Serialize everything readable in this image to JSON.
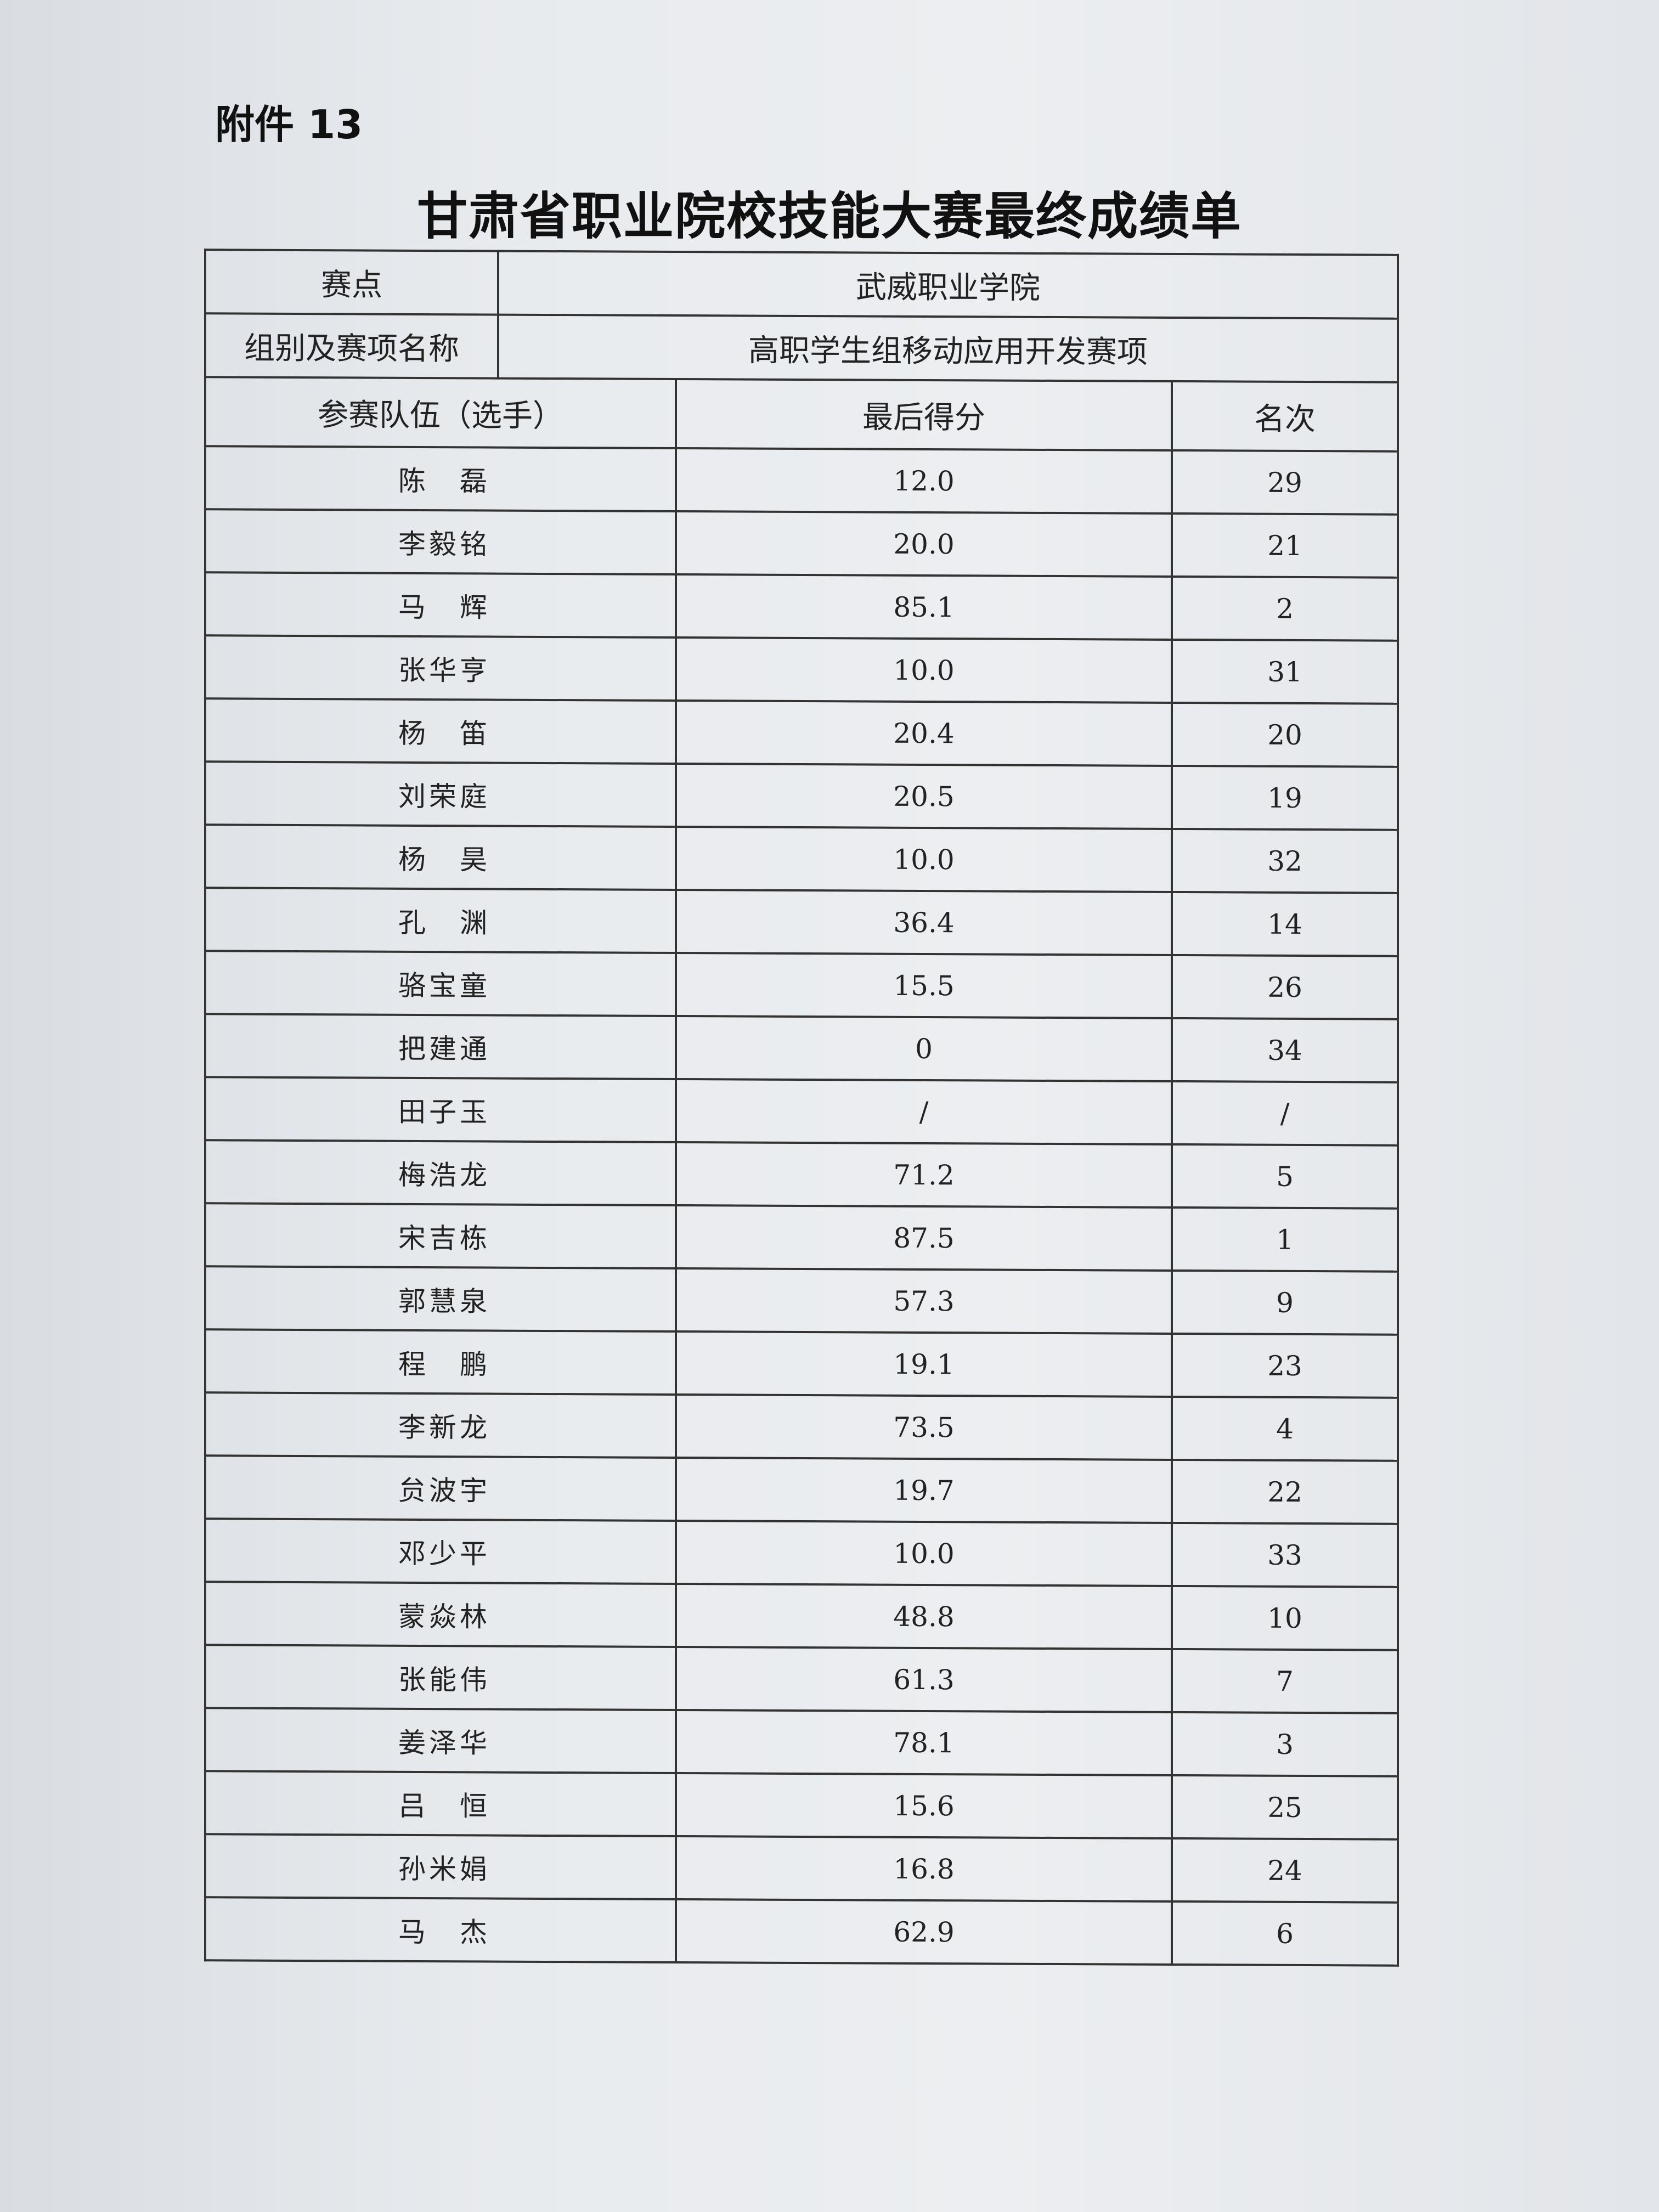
{
  "annex_label": "附件 13",
  "title": "甘肃省职业院校技能大赛最终成绩单",
  "venue": {
    "label": "赛点",
    "value": "武威职业学院"
  },
  "category": {
    "label": "组别及赛项名称",
    "value": "高职学生组移动应用开发赛项"
  },
  "columns": [
    "参赛队伍（选手）",
    "最后得分",
    "名次"
  ],
  "rows": [
    {
      "name": "陈　磊",
      "score": "12.0",
      "rank": "29"
    },
    {
      "name": "李毅铭",
      "score": "20.0",
      "rank": "21"
    },
    {
      "name": "马　辉",
      "score": "85.1",
      "rank": "2"
    },
    {
      "name": "张华亨",
      "score": "10.0",
      "rank": "31"
    },
    {
      "name": "杨　笛",
      "score": "20.4",
      "rank": "20"
    },
    {
      "name": "刘荣庭",
      "score": "20.5",
      "rank": "19"
    },
    {
      "name": "杨　昊",
      "score": "10.0",
      "rank": "32"
    },
    {
      "name": "孔　渊",
      "score": "36.4",
      "rank": "14"
    },
    {
      "name": "骆宝童",
      "score": "15.5",
      "rank": "26"
    },
    {
      "name": "把建通",
      "score": "0",
      "rank": "34"
    },
    {
      "name": "田子玉",
      "score": "/",
      "rank": "/"
    },
    {
      "name": "梅浩龙",
      "score": "71.2",
      "rank": "5"
    },
    {
      "name": "宋吉栋",
      "score": "87.5",
      "rank": "1"
    },
    {
      "name": "郭慧泉",
      "score": "57.3",
      "rank": "9"
    },
    {
      "name": "程　鹏",
      "score": "19.1",
      "rank": "23"
    },
    {
      "name": "李新龙",
      "score": "73.5",
      "rank": "4"
    },
    {
      "name": "贠波宇",
      "score": "19.7",
      "rank": "22"
    },
    {
      "name": "邓少平",
      "score": "10.0",
      "rank": "33"
    },
    {
      "name": "蒙焱林",
      "score": "48.8",
      "rank": "10"
    },
    {
      "name": "张能伟",
      "score": "61.3",
      "rank": "7"
    },
    {
      "name": "姜泽华",
      "score": "78.1",
      "rank": "3"
    },
    {
      "name": "吕　恒",
      "score": "15.6",
      "rank": "25"
    },
    {
      "name": "孙米娟",
      "score": "16.8",
      "rank": "24"
    },
    {
      "name": "马　杰",
      "score": "62.9",
      "rank": "6"
    }
  ]
}
